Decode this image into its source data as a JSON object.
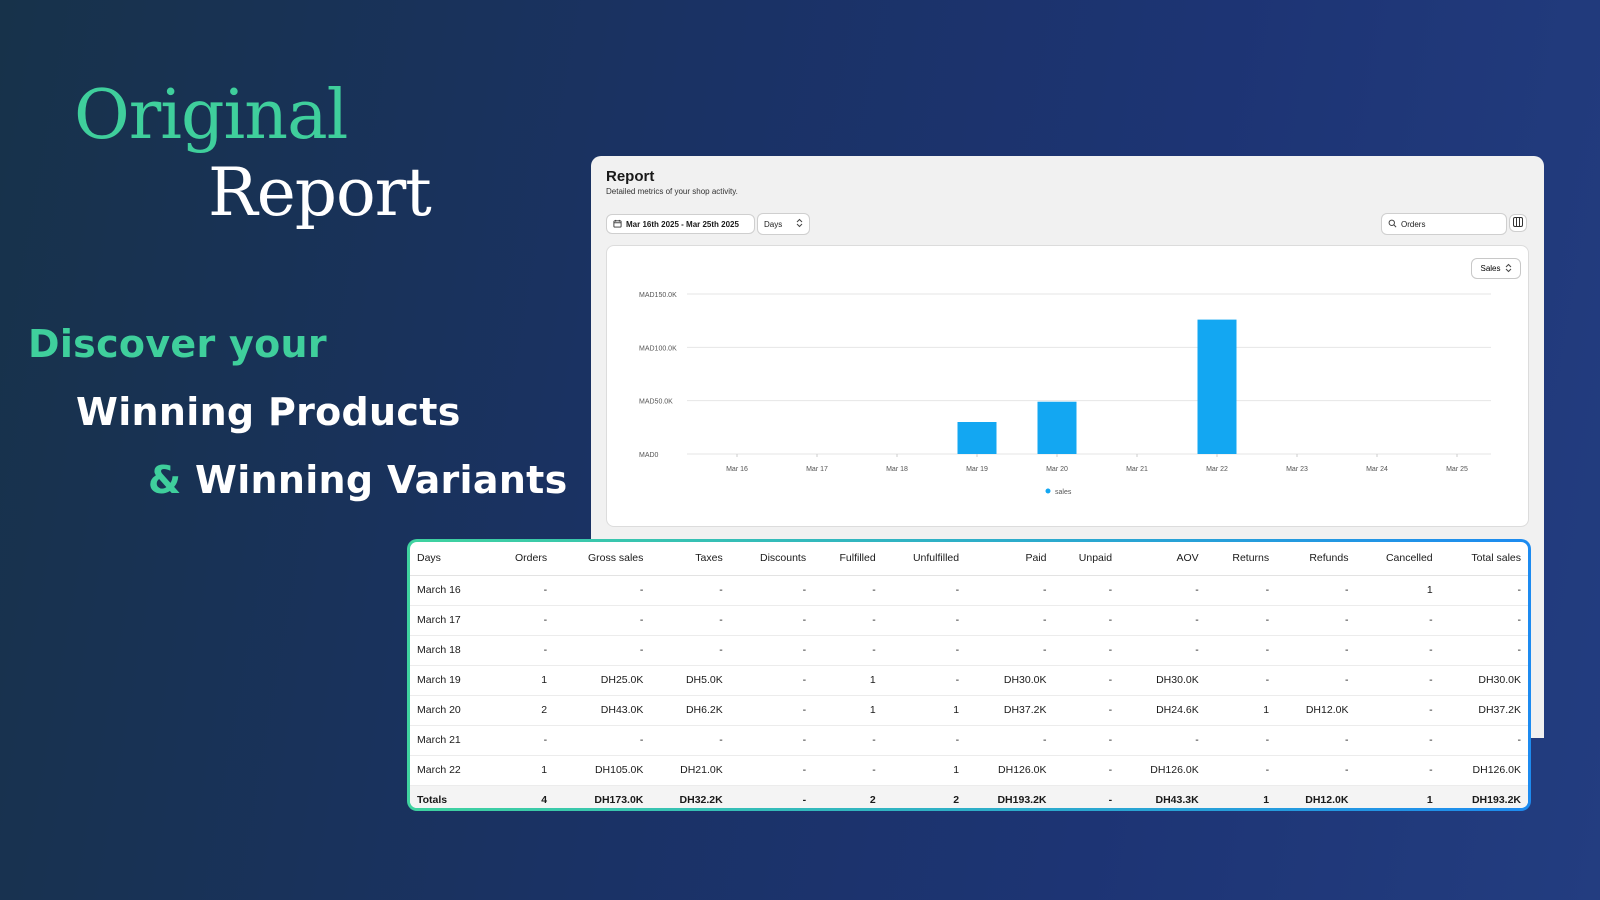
{
  "hero": {
    "title_line1": "Original",
    "title_line2": "Report",
    "tagline_line1": "Discover your",
    "tagline_line2": "Winning Products",
    "tagline_line3_amp": "&",
    "tagline_line3": "Winning Variants"
  },
  "colors": {
    "accent": "#3fcf9c",
    "bar": "#13a7f2",
    "table_border_start": "#3fd39f",
    "table_border_end": "#1d8bf0"
  },
  "report": {
    "title": "Report",
    "subtitle": "Detailed metrics of your shop activity.",
    "date_range": "Mar 16th 2025 - Mar 25th 2025",
    "granularity": "Days",
    "search_value": "Orders",
    "metric_select": "Sales",
    "icons": {
      "date": "calendar-icon",
      "select": "up-down-chevron-icon",
      "search": "search-icon",
      "columns": "columns-icon"
    }
  },
  "chart_data": {
    "type": "bar",
    "categories": [
      "Mar 16",
      "Mar 17",
      "Mar 18",
      "Mar 19",
      "Mar 20",
      "Mar 21",
      "Mar 22",
      "Mar 23",
      "Mar 24",
      "Mar 25"
    ],
    "series": [
      {
        "name": "sales",
        "values": [
          0,
          0,
          0,
          30000,
          49000,
          0,
          126000,
          0,
          0,
          0
        ]
      }
    ],
    "yticks": [
      "MAD0",
      "MAD50.0K",
      "MAD100.0K",
      "MAD150.0K"
    ],
    "ylim": [
      0,
      150000
    ],
    "grid": true,
    "legend": "bottom-center"
  },
  "table": {
    "columns": [
      "Days",
      "Orders",
      "Gross sales",
      "Taxes",
      "Discounts",
      "Fulfilled",
      "Unfulfilled",
      "Paid",
      "Unpaid",
      "AOV",
      "Returns",
      "Refunds",
      "Cancelled",
      "Total sales"
    ],
    "rows": [
      [
        "March 16",
        "-",
        "-",
        "-",
        "-",
        "-",
        "-",
        "-",
        "-",
        "-",
        "-",
        "-",
        "1",
        "-"
      ],
      [
        "March 17",
        "-",
        "-",
        "-",
        "-",
        "-",
        "-",
        "-",
        "-",
        "-",
        "-",
        "-",
        "-",
        "-"
      ],
      [
        "March 18",
        "-",
        "-",
        "-",
        "-",
        "-",
        "-",
        "-",
        "-",
        "-",
        "-",
        "-",
        "-",
        "-"
      ],
      [
        "March 19",
        "1",
        "DH25.0K",
        "DH5.0K",
        "-",
        "1",
        "-",
        "DH30.0K",
        "-",
        "DH30.0K",
        "-",
        "-",
        "-",
        "DH30.0K"
      ],
      [
        "March 20",
        "2",
        "DH43.0K",
        "DH6.2K",
        "-",
        "1",
        "1",
        "DH37.2K",
        "-",
        "DH24.6K",
        "1",
        "DH12.0K",
        "-",
        "DH37.2K"
      ],
      [
        "March 21",
        "-",
        "-",
        "-",
        "-",
        "-",
        "-",
        "-",
        "-",
        "-",
        "-",
        "-",
        "-",
        "-"
      ],
      [
        "March 22",
        "1",
        "DH105.0K",
        "DH21.0K",
        "-",
        "-",
        "1",
        "DH126.0K",
        "-",
        "DH126.0K",
        "-",
        "-",
        "-",
        "DH126.0K"
      ]
    ],
    "totals": [
      "Totals",
      "4",
      "DH173.0K",
      "DH32.2K",
      "-",
      "2",
      "2",
      "DH193.2K",
      "-",
      "DH43.3K",
      "1",
      "DH12.0K",
      "1",
      "DH193.2K"
    ]
  }
}
